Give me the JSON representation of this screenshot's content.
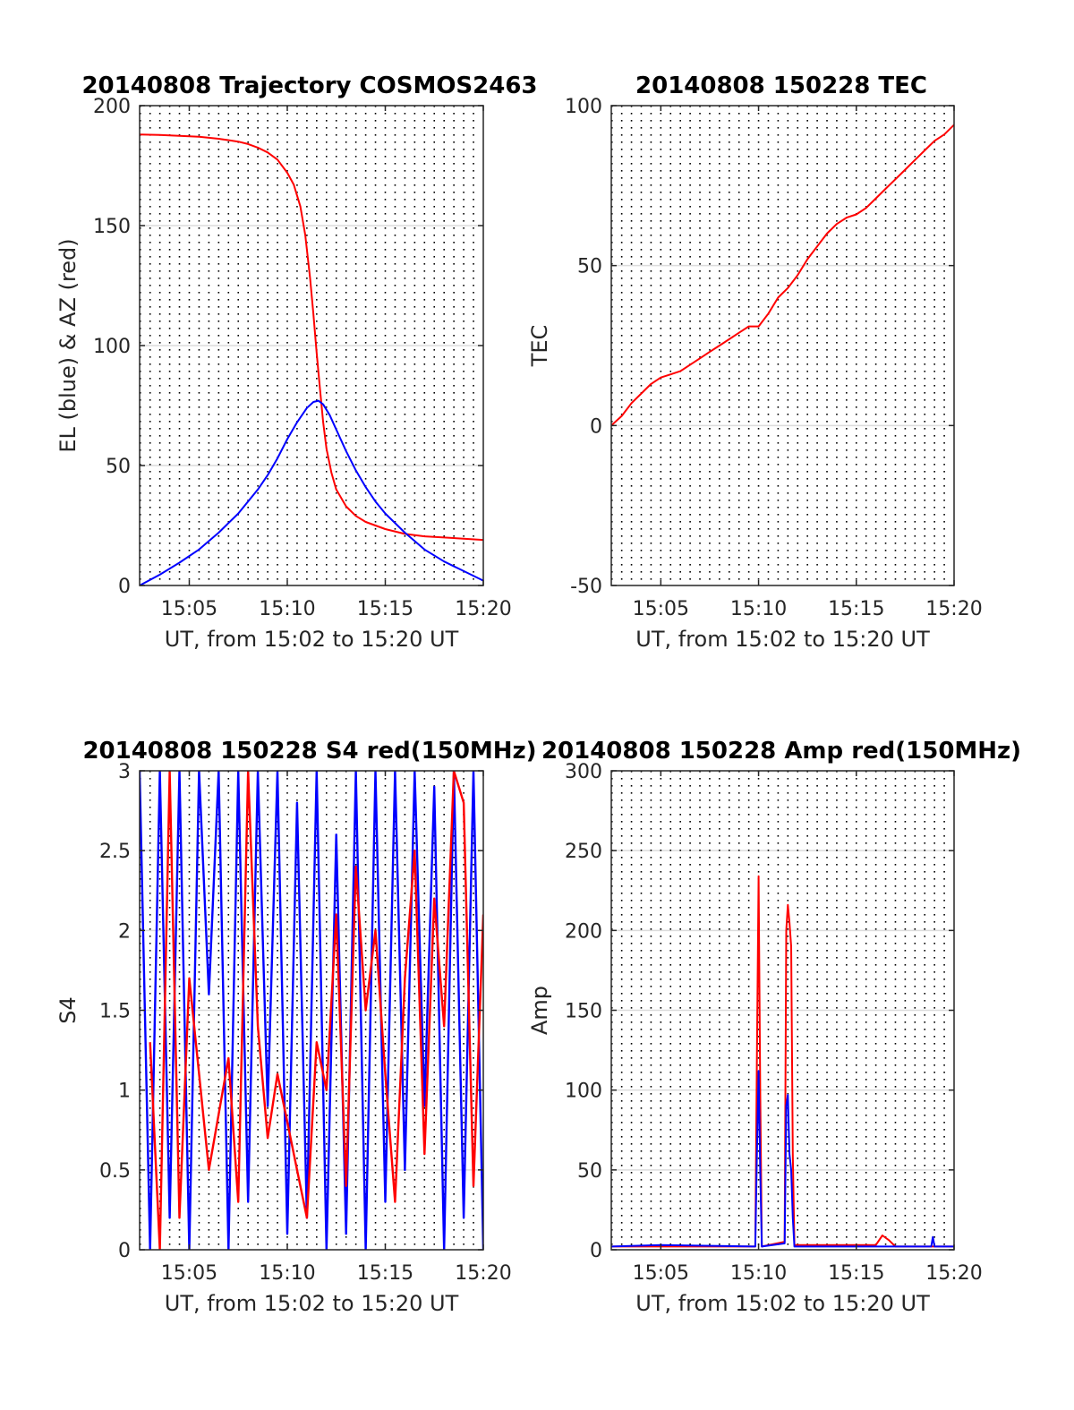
{
  "figure": {
    "time_range_label": "UT, from 15:02 to 15:20 UT"
  },
  "chart_data": [
    {
      "id": "trajectory",
      "type": "line",
      "title": "20140808 Trajectory COSMOS2463",
      "xlabel": "UT, from 15:02 to 15:20 UT",
      "ylabel": "EL (blue) & AZ (red)",
      "xlim": [
        "15:02:28",
        "15:20:00"
      ],
      "ylim": [
        0,
        200
      ],
      "xticks": [
        "15:05",
        "15:10",
        "15:15",
        "15:20"
      ],
      "yticks": [
        0,
        50,
        100,
        150,
        200
      ],
      "grid": true,
      "series": [
        {
          "color": "#ff0000",
          "x": [
            "15:02:28",
            "15:03:30",
            "15:04:30",
            "15:05:30",
            "15:06:30",
            "15:07:30",
            "15:08:00",
            "15:08:30",
            "15:09:00",
            "15:09:30",
            "15:10:00",
            "15:10:20",
            "15:10:40",
            "15:10:55",
            "15:11:10",
            "15:11:20",
            "15:11:30",
            "15:11:40",
            "15:11:50",
            "15:12:00",
            "15:12:15",
            "15:12:30",
            "15:13:00",
            "15:13:30",
            "15:14:00",
            "15:14:30",
            "15:15:00",
            "15:16:00",
            "15:17:00",
            "15:18:00",
            "15:19:00",
            "15:20:00"
          ],
          "y": [
            188,
            187.8,
            187.4,
            187,
            186.2,
            185,
            184,
            182.5,
            180.5,
            177.5,
            172,
            167,
            158,
            146,
            128,
            113,
            97,
            82,
            68,
            57,
            47,
            40,
            33,
            29,
            26.5,
            25,
            23.5,
            21.5,
            20.5,
            20,
            19.5,
            19
          ]
        },
        {
          "color": "#0000ff",
          "x": [
            "15:02:28",
            "15:03:30",
            "15:04:30",
            "15:05:30",
            "15:06:30",
            "15:07:30",
            "15:08:30",
            "15:09:00",
            "15:09:30",
            "15:10:00",
            "15:10:30",
            "15:11:00",
            "15:11:20",
            "15:11:35",
            "15:11:50",
            "15:12:10",
            "15:12:30",
            "15:13:00",
            "15:13:30",
            "15:14:00",
            "15:14:30",
            "15:15:00",
            "15:16:00",
            "15:17:00",
            "15:18:00",
            "15:19:00",
            "15:20:00"
          ],
          "y": [
            0,
            4.5,
            9.5,
            15,
            22,
            30,
            40,
            46,
            53,
            61,
            68,
            74,
            76.5,
            77,
            75.5,
            71,
            65,
            56,
            48,
            41,
            35,
            30,
            22,
            15,
            10,
            6,
            2
          ]
        }
      ]
    },
    {
      "id": "tec",
      "type": "line",
      "title": "20140808 150228 TEC",
      "xlabel": "UT, from 15:02 to 15:20 UT",
      "ylabel": "TEC",
      "xlim": [
        "15:02:28",
        "15:20:00"
      ],
      "ylim": [
        -50,
        100
      ],
      "xticks": [
        "15:05",
        "15:10",
        "15:15",
        "15:20"
      ],
      "yticks": [
        -50,
        0,
        50,
        100
      ],
      "grid": true,
      "series": [
        {
          "color": "#ff0000",
          "x": [
            "15:02:28",
            "15:03:00",
            "15:03:30",
            "15:04:00",
            "15:04:30",
            "15:05:00",
            "15:05:30",
            "15:06:00",
            "15:06:30",
            "15:07:00",
            "15:07:30",
            "15:08:00",
            "15:08:30",
            "15:09:00",
            "15:09:30",
            "15:10:00",
            "15:10:30",
            "15:11:00",
            "15:11:30",
            "15:12:00",
            "15:12:30",
            "15:13:00",
            "15:13:30",
            "15:14:00",
            "15:14:30",
            "15:15:00",
            "15:15:30",
            "15:16:00",
            "15:16:30",
            "15:17:00",
            "15:17:30",
            "15:18:00",
            "15:18:30",
            "15:19:00",
            "15:19:30",
            "15:20:00"
          ],
          "y": [
            0,
            3,
            7,
            10,
            13,
            15,
            16,
            17,
            19,
            21,
            23,
            25,
            27,
            29,
            31,
            31,
            35,
            40,
            43,
            47,
            52,
            56,
            60,
            63,
            65,
            66,
            68,
            71,
            74,
            77,
            80,
            83,
            86,
            89,
            91,
            94
          ]
        }
      ]
    },
    {
      "id": "s4",
      "type": "line",
      "title": "20140808 150228 S4 red(150MHz)",
      "xlabel": "UT, from 15:02 to 15:20 UT",
      "ylabel": "S4",
      "xlim": [
        "15:02:28",
        "15:20:00"
      ],
      "ylim": [
        0,
        3
      ],
      "xticks": [
        "15:05",
        "15:10",
        "15:15",
        "15:20"
      ],
      "yticks": [
        0,
        0.5,
        1,
        1.5,
        2,
        2.5,
        3
      ],
      "grid": true,
      "series": [
        {
          "color": "#0000ff",
          "x": [
            "15:02:28",
            "15:03:00",
            "15:03:30",
            "15:04:00",
            "15:04:30",
            "15:05:00",
            "15:05:30",
            "15:06:00",
            "15:06:30",
            "15:07:00",
            "15:07:30",
            "15:08:00",
            "15:08:30",
            "15:09:00",
            "15:09:30",
            "15:10:00",
            "15:10:30",
            "15:11:00",
            "15:11:30",
            "15:12:00",
            "15:12:30",
            "15:13:00",
            "15:13:30",
            "15:14:00",
            "15:14:30",
            "15:15:00",
            "15:15:30",
            "15:16:00",
            "15:16:30",
            "15:17:00",
            "15:17:30",
            "15:18:00",
            "15:18:30",
            "15:19:00",
            "15:19:30",
            "15:20:00"
          ],
          "y": [
            3,
            0,
            3,
            0.2,
            3,
            0,
            3,
            1.6,
            3,
            0,
            3,
            0.3,
            3,
            0.9,
            3,
            0.1,
            2.8,
            0.2,
            3,
            0,
            2.6,
            0.1,
            3,
            0,
            3,
            0.3,
            3,
            0.5,
            3,
            0.9,
            2.9,
            0,
            3,
            0.2,
            3,
            0
          ]
        },
        {
          "color": "#ff0000",
          "x": [
            "15:03:00",
            "15:03:30",
            "15:04:00",
            "15:04:30",
            "15:05:00",
            "15:06:00",
            "15:07:00",
            "15:07:30",
            "15:08:00",
            "15:08:30",
            "15:09:00",
            "15:09:30",
            "15:10:00",
            "15:10:30",
            "15:11:00",
            "15:11:30",
            "15:12:00",
            "15:12:30",
            "15:13:00",
            "15:13:30",
            "15:14:00",
            "15:14:30",
            "15:15:00",
            "15:15:30",
            "15:16:00",
            "15:16:30",
            "15:17:00",
            "15:17:30",
            "15:18:00",
            "15:18:30",
            "15:19:00",
            "15:19:30",
            "15:20:00"
          ],
          "y": [
            1.3,
            0,
            3,
            0.2,
            1.7,
            0.5,
            1.2,
            0.3,
            3,
            1.4,
            0.7,
            1.1,
            0.8,
            0.5,
            0.2,
            1.3,
            1.0,
            2.1,
            0.4,
            2.4,
            1.5,
            2.0,
            1.1,
            0.3,
            1.7,
            2.5,
            0.6,
            2.2,
            1.4,
            3,
            2.8,
            0.4,
            2.1
          ]
        }
      ]
    },
    {
      "id": "amp",
      "type": "line",
      "title": "20140808 150228 Amp red(150MHz)",
      "xlabel": "UT, from 15:02 to 15:20 UT",
      "ylabel": "Amp",
      "xlim": [
        "15:02:28",
        "15:20:00"
      ],
      "ylim": [
        0,
        300
      ],
      "xticks": [
        "15:05",
        "15:10",
        "15:15",
        "15:20"
      ],
      "yticks": [
        0,
        50,
        100,
        150,
        200,
        250,
        300
      ],
      "grid": true,
      "series": [
        {
          "color": "#ff0000",
          "x": [
            "15:02:28",
            "15:05:00",
            "15:09:50",
            "15:09:55",
            "15:10:00",
            "15:10:05",
            "15:10:10",
            "15:11:20",
            "15:11:25",
            "15:11:30",
            "15:11:35",
            "15:11:40",
            "15:11:45",
            "15:11:50",
            "15:16:00",
            "15:16:20",
            "15:16:40",
            "15:17:00",
            "15:20:00"
          ],
          "y": [
            2,
            2,
            2,
            120,
            234,
            100,
            2,
            5,
            200,
            216,
            205,
            190,
            60,
            3,
            3,
            9,
            6,
            2,
            2
          ]
        },
        {
          "color": "#0000ff",
          "x": [
            "15:02:28",
            "15:05:00",
            "15:09:50",
            "15:09:55",
            "15:10:00",
            "15:10:05",
            "15:10:10",
            "15:11:20",
            "15:11:25",
            "15:11:30",
            "15:11:35",
            "15:11:40",
            "15:11:45",
            "15:11:50",
            "15:18:50",
            "15:18:55",
            "15:19:00",
            "15:20:00"
          ],
          "y": [
            2,
            3,
            2,
            60,
            112,
            50,
            2,
            4,
            90,
            97,
            60,
            50,
            20,
            2,
            2,
            8,
            2,
            2
          ]
        }
      ]
    }
  ]
}
